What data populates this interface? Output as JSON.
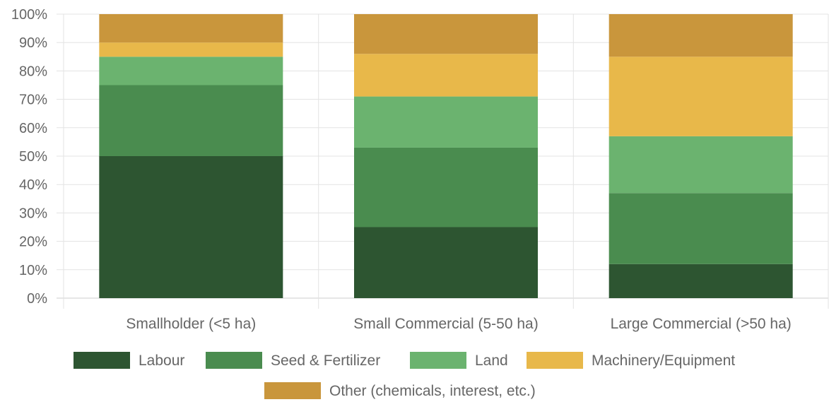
{
  "chart_data": {
    "type": "bar",
    "stacked": true,
    "categories": [
      "Smallholder (<5 ha)",
      "Small Commercial (5-50 ha)",
      "Large Commercial (>50 ha)"
    ],
    "series": [
      {
        "name": "Labour",
        "color": "#2d5531",
        "values": [
          50,
          25,
          12
        ]
      },
      {
        "name": "Seed & Fertilizer",
        "color": "#4a8c4f",
        "values": [
          25,
          28,
          25
        ]
      },
      {
        "name": "Land",
        "color": "#6bb36f",
        "values": [
          10,
          18,
          20
        ]
      },
      {
        "name": "Machinery/Equipment",
        "color": "#e8b84a",
        "values": [
          5,
          15,
          28
        ]
      },
      {
        "name": "Other (chemicals, interest, etc.)",
        "color": "#c9963c",
        "values": [
          10,
          14,
          15
        ]
      }
    ],
    "yticks": [
      "0%",
      "10%",
      "20%",
      "30%",
      "40%",
      "50%",
      "60%",
      "70%",
      "80%",
      "90%",
      "100%"
    ],
    "ylim": [
      0,
      100
    ],
    "grid": true,
    "legend": "bottom"
  }
}
